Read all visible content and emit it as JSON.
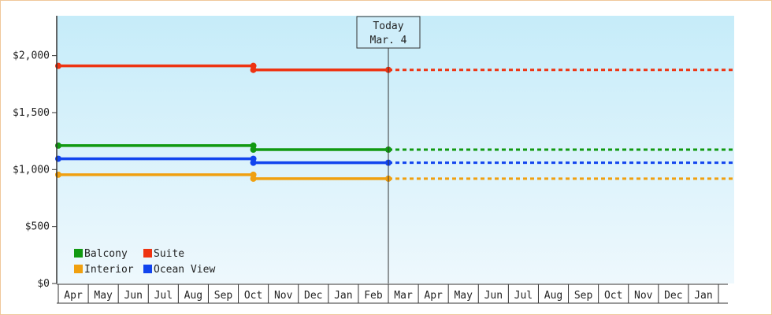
{
  "chart_data": {
    "type": "line",
    "y_ticks": [
      "$0",
      "$500",
      "$1,000",
      "$1,500",
      "$2,000"
    ],
    "y_tick_values": [
      0,
      500,
      1000,
      1500,
      2000
    ],
    "ylim": [
      0,
      2350
    ],
    "x_ticks": [
      "Apr",
      "May",
      "Jun",
      "Jul",
      "Aug",
      "Sep",
      "Oct",
      "Nov",
      "Dec",
      "Jan",
      "Feb",
      "Mar",
      "Apr",
      "May",
      "Jun",
      "Jul",
      "Aug",
      "Sep",
      "Oct",
      "Nov",
      "Dec",
      "Jan"
    ],
    "xlim": [
      0,
      22
    ],
    "grid": false,
    "legend_position": "bottom-left",
    "today_marker": {
      "x": 11.0,
      "label_line1": "Today",
      "label_line2": "Mar. 4"
    },
    "series": [
      {
        "name": "Balcony",
        "color": "#119911",
        "points": [
          [
            0.0,
            1210
          ],
          [
            6.5,
            1210
          ],
          [
            6.5,
            1175
          ],
          [
            11.0,
            1175
          ]
        ],
        "projection": {
          "from": 11.0,
          "to": 22.0,
          "value": 1175
        }
      },
      {
        "name": "Suite",
        "color": "#ee3311",
        "points": [
          [
            0.0,
            1910
          ],
          [
            6.5,
            1910
          ],
          [
            6.5,
            1875
          ],
          [
            11.0,
            1875
          ]
        ],
        "projection": {
          "from": 11.0,
          "to": 22.0,
          "value": 1875
        }
      },
      {
        "name": "Interior",
        "color": "#f0a010",
        "points": [
          [
            0.0,
            955
          ],
          [
            6.5,
            955
          ],
          [
            6.5,
            920
          ],
          [
            11.0,
            920
          ]
        ],
        "projection": {
          "from": 11.0,
          "to": 22.0,
          "value": 920
        }
      },
      {
        "name": "Ocean View",
        "color": "#1144ee",
        "points": [
          [
            0.0,
            1095
          ],
          [
            6.5,
            1095
          ],
          [
            6.5,
            1060
          ],
          [
            11.0,
            1060
          ]
        ],
        "projection": {
          "from": 11.0,
          "to": 22.0,
          "value": 1060
        }
      }
    ],
    "legend": [
      {
        "series": "Balcony",
        "color": "#119911"
      },
      {
        "series": "Suite",
        "color": "#ee3311"
      },
      {
        "series": "Interior",
        "color": "#f0a010"
      },
      {
        "series": "Ocean View",
        "color": "#1144ee"
      }
    ],
    "colors": {
      "plot_top": "#c6ecf9",
      "plot_bottom": "#eef8fd",
      "axis": "#333333",
      "frame_border": "#f0c89a"
    }
  }
}
